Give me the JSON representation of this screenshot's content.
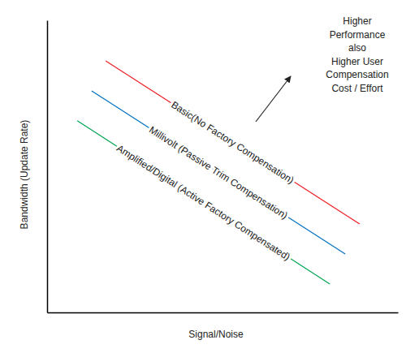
{
  "chart_data": {
    "type": "line",
    "xlabel": "Signal/Noise",
    "ylabel": "Bandwidth (Update Rate)",
    "annotation": [
      "Higher",
      "Performance",
      "also",
      "Higher User",
      "Compensation",
      "Cost / Effort"
    ],
    "xlim": [
      0,
      100
    ],
    "ylim": [
      0,
      100
    ],
    "xticks": [],
    "yticks": [],
    "tick_labels": false,
    "grid": false,
    "series": [
      {
        "name": "Basic(No Factory Compensation)",
        "color": "#ee1c24",
        "x": [
          16.7,
          89.1
        ],
        "values": [
          86.1,
          30.3
        ]
      },
      {
        "name": "Millivolt (Passive Trim Compensation)",
        "color": "#0070c0",
        "x": [
          12.7,
          85.0
        ],
        "values": [
          75.8,
          20.0
        ]
      },
      {
        "name": "Amplified/Digital (Active Factory Compensated)",
        "color": "#00a651",
        "x": [
          8.6,
          80.6
        ],
        "values": [
          65.6,
          9.7
        ]
      }
    ]
  }
}
